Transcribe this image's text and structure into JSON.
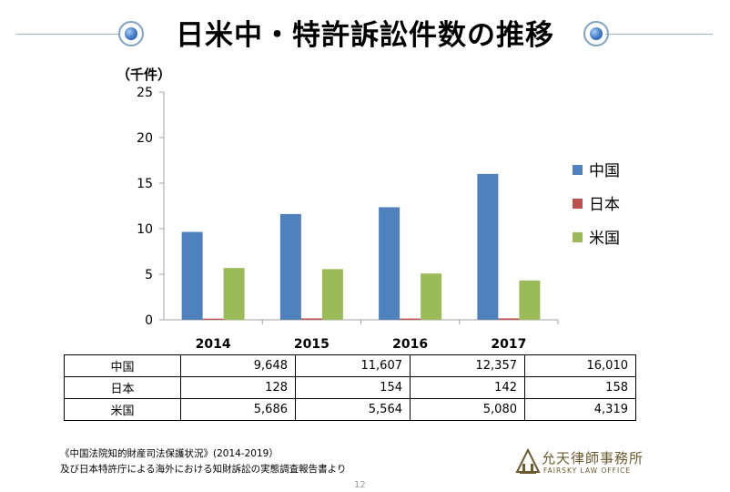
{
  "title": "日米中・特許訴訟件数の推移",
  "chart_data": {
    "type": "bar",
    "unit_label": "（千件）",
    "categories": [
      "2014",
      "2015",
      "2016",
      "2017"
    ],
    "yticks": [
      "0",
      "5",
      "10",
      "15",
      "20",
      "25"
    ],
    "ylim": [
      0,
      25
    ],
    "series": [
      {
        "name": "中国",
        "color": "#4f81bd",
        "values": [
          9.648,
          11.607,
          12.357,
          16.01
        ]
      },
      {
        "name": "日本",
        "color": "#c0504d",
        "values": [
          0.128,
          0.154,
          0.142,
          0.158
        ]
      },
      {
        "name": "米国",
        "color": "#9bbb59",
        "values": [
          5.686,
          5.564,
          5.08,
          4.319
        ]
      }
    ],
    "legend_position": "right"
  },
  "table": {
    "rows": [
      {
        "label": "中国",
        "values": [
          "9,648",
          "11,607",
          "12,357",
          "16,010"
        ]
      },
      {
        "label": "日本",
        "values": [
          "128",
          "154",
          "142",
          "158"
        ]
      },
      {
        "label": "米国",
        "values": [
          "5,686",
          "5,564",
          "5,080",
          "4,319"
        ]
      }
    ]
  },
  "source_line1": "《中国法院知的財産司法保護状況》(2014-2019）",
  "source_line2": "及び日本特許庁による海外における知財訴訟の実態調査報告書より",
  "page_number": "12",
  "logo": {
    "name_cn": "允天律師事務所",
    "name_en": "FAIRSKY LAW OFFICE"
  }
}
